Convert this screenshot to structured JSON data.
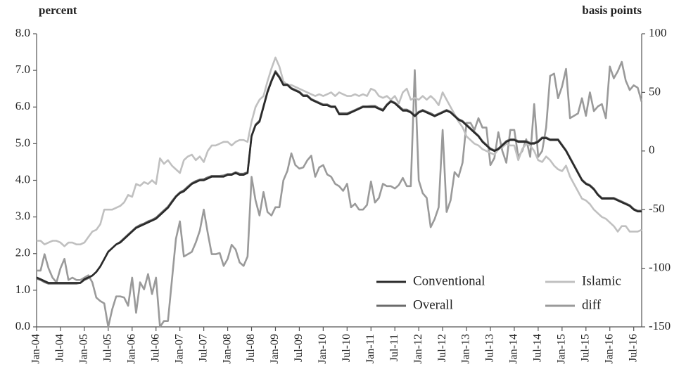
{
  "chart_data": {
    "type": "line",
    "y_label": "percent",
    "y2_label": "basis points",
    "categories": [
      "Jan-04",
      null,
      null,
      null,
      null,
      null,
      "Jul-04",
      null,
      null,
      null,
      null,
      null,
      "Jan-05",
      null,
      null,
      null,
      null,
      null,
      "Jul-05",
      null,
      null,
      null,
      null,
      null,
      "Jan-06",
      null,
      null,
      null,
      null,
      null,
      "Jul-06",
      null,
      null,
      null,
      null,
      null,
      "Jan-07",
      null,
      null,
      null,
      null,
      null,
      "Jul-07",
      null,
      null,
      null,
      null,
      null,
      "Jan-08",
      null,
      null,
      null,
      null,
      null,
      "Jul-08",
      null,
      null,
      null,
      null,
      null,
      "Jan-09",
      null,
      null,
      null,
      null,
      null,
      "Jul-09",
      null,
      null,
      null,
      null,
      null,
      "Jan-10",
      null,
      null,
      null,
      null,
      null,
      "Jul-10",
      null,
      null,
      null,
      null,
      null,
      "Jan-11",
      null,
      null,
      null,
      null,
      null,
      "Jul-11",
      null,
      null,
      null,
      null,
      null,
      "Jan-12",
      null,
      null,
      null,
      null,
      null,
      "Jul-12",
      null,
      null,
      null,
      null,
      null,
      "Jan-13",
      null,
      null,
      null,
      null,
      null,
      "Jul-13",
      null,
      null,
      null,
      null,
      null,
      "Jan-14",
      null,
      null,
      null,
      null,
      null,
      "Jul-14",
      null,
      null,
      null,
      null,
      null,
      "Jan-15",
      null,
      null,
      null,
      null,
      null,
      "Jul-15",
      null,
      null,
      null,
      null,
      null,
      "Jan-16",
      null,
      null,
      null,
      null,
      null,
      "Jul-16",
      null,
      null
    ],
    "series": [
      {
        "name": "Conventional",
        "color": "#2a2a2a",
        "width": 2.6,
        "values": [
          1.35,
          1.3,
          1.25,
          1.2,
          1.2,
          1.2,
          1.2,
          1.2,
          1.2,
          1.2,
          1.2,
          1.2,
          1.3,
          1.35,
          1.4,
          1.5,
          1.65,
          1.85,
          2.05,
          2.15,
          2.25,
          2.3,
          2.4,
          2.5,
          2.6,
          2.7,
          2.75,
          2.8,
          2.85,
          2.9,
          2.95,
          3.05,
          3.15,
          3.25,
          3.4,
          3.55,
          3.65,
          3.7,
          3.8,
          3.9,
          3.95,
          4.0,
          4.0,
          4.05,
          4.1,
          4.1,
          4.1,
          4.1,
          4.15,
          4.15,
          4.2,
          4.15,
          4.15,
          4.2,
          5.2,
          5.5,
          5.6,
          6.0,
          6.4,
          6.7,
          6.95,
          6.8,
          6.6,
          6.6,
          6.5,
          6.45,
          6.4,
          6.3,
          6.3,
          6.2,
          6.15,
          6.1,
          6.05,
          6.05,
          6.0,
          6.0,
          5.8,
          5.8,
          5.8,
          5.85,
          5.9,
          5.95,
          6.0,
          6.0,
          6.0,
          6.0,
          5.95,
          5.9,
          6.05,
          6.15,
          6.1,
          6.0,
          5.9,
          5.9,
          5.85,
          5.75,
          5.85,
          5.9,
          5.85,
          5.8,
          5.75,
          5.8,
          5.85,
          5.9,
          5.85,
          5.75,
          5.65,
          5.6,
          5.5,
          5.4,
          5.3,
          5.2,
          5.05,
          4.95,
          4.85,
          4.8,
          4.85,
          4.95,
          5.05,
          5.1,
          5.1,
          5.05,
          5.05,
          5.05,
          5.0,
          5.0,
          5.05,
          5.15,
          5.15,
          5.1,
          5.1,
          5.1,
          4.95,
          4.8,
          4.6,
          4.4,
          4.2,
          4.0,
          3.9,
          3.85,
          3.75,
          3.6,
          3.5,
          3.5,
          3.5,
          3.5,
          3.45,
          3.4,
          3.35,
          3.3,
          3.2,
          3.15,
          3.15
        ]
      },
      {
        "name": "Islamic",
        "color": "#c0c0c0",
        "width": 2.6,
        "values": [
          2.35,
          2.35,
          2.25,
          2.3,
          2.35,
          2.35,
          2.3,
          2.2,
          2.3,
          2.3,
          2.25,
          2.25,
          2.3,
          2.45,
          2.6,
          2.65,
          2.8,
          3.2,
          3.2,
          3.2,
          3.25,
          3.3,
          3.4,
          3.6,
          3.55,
          3.9,
          3.85,
          3.95,
          3.9,
          4.0,
          3.9,
          4.6,
          4.45,
          4.55,
          4.4,
          4.3,
          4.2,
          4.55,
          4.65,
          4.7,
          4.55,
          4.65,
          4.5,
          4.8,
          4.95,
          4.95,
          5.0,
          5.05,
          5.05,
          4.95,
          5.05,
          5.1,
          5.1,
          5.05,
          5.6,
          6.0,
          6.2,
          6.3,
          6.7,
          7.05,
          7.35,
          7.1,
          6.7,
          6.6,
          6.6,
          6.55,
          6.5,
          6.45,
          6.4,
          6.35,
          6.3,
          6.35,
          6.3,
          6.35,
          6.4,
          6.3,
          6.4,
          6.35,
          6.3,
          6.3,
          6.35,
          6.3,
          6.35,
          6.3,
          6.5,
          6.45,
          6.3,
          6.25,
          6.3,
          6.2,
          6.3,
          6.1,
          6.4,
          6.5,
          6.2,
          6.25,
          6.2,
          6.3,
          6.2,
          6.3,
          6.2,
          6.05,
          6.4,
          6.2,
          6.0,
          5.8,
          5.6,
          5.45,
          5.2,
          5.1,
          5.0,
          4.95,
          4.85,
          4.8,
          4.75,
          4.7,
          4.85,
          4.9,
          5.0,
          4.95,
          4.95,
          4.55,
          4.85,
          5.0,
          4.95,
          4.8,
          4.55,
          4.5,
          4.65,
          4.55,
          4.4,
          4.3,
          4.25,
          4.4,
          4.1,
          3.9,
          3.7,
          3.5,
          3.45,
          3.35,
          3.2,
          3.1,
          3.0,
          2.95,
          2.85,
          2.75,
          2.6,
          2.75,
          2.75,
          2.6,
          2.6,
          2.6,
          2.65
        ]
      },
      {
        "name": "Overall",
        "color": "#6b6b6b",
        "width": 2.6,
        "values": [
          1.32,
          1.28,
          1.22,
          1.18,
          1.18,
          1.18,
          1.18,
          1.18,
          1.18,
          1.18,
          1.18,
          1.2,
          1.28,
          1.33,
          1.4,
          1.5,
          1.65,
          1.85,
          2.05,
          2.15,
          2.25,
          2.32,
          2.42,
          2.52,
          2.62,
          2.72,
          2.78,
          2.82,
          2.88,
          2.92,
          2.98,
          3.08,
          3.18,
          3.28,
          3.43,
          3.57,
          3.67,
          3.73,
          3.83,
          3.92,
          3.98,
          4.02,
          4.03,
          4.08,
          4.12,
          4.12,
          4.12,
          4.13,
          4.17,
          4.17,
          4.22,
          4.18,
          4.18,
          4.22,
          5.22,
          5.52,
          5.63,
          6.03,
          6.43,
          6.73,
          6.98,
          6.83,
          6.62,
          6.62,
          6.52,
          6.47,
          6.42,
          6.32,
          6.32,
          6.22,
          6.17,
          6.12,
          6.07,
          6.07,
          6.02,
          6.02,
          5.83,
          5.83,
          5.83,
          5.87,
          5.92,
          5.97,
          6.02,
          6.02,
          6.03,
          6.03,
          5.97,
          5.93,
          6.07,
          6.17,
          6.12,
          6.03,
          5.93,
          5.93,
          5.87,
          5.78,
          5.87,
          5.92,
          5.87,
          5.83,
          5.77,
          5.82,
          5.87,
          5.92,
          5.87,
          5.77,
          5.67,
          5.62,
          5.52,
          5.42,
          5.32,
          5.22,
          5.07,
          4.97,
          4.87,
          4.82,
          4.87,
          4.97,
          5.07,
          5.12,
          5.12,
          5.07,
          5.07,
          5.07,
          5.02,
          5.02,
          5.07,
          5.17,
          5.17,
          5.12,
          5.12,
          5.12,
          4.97,
          4.82,
          4.62,
          4.42,
          4.22,
          4.02,
          3.92,
          3.87,
          3.77,
          3.62,
          3.52,
          3.52,
          3.52,
          3.52,
          3.47,
          3.42,
          3.37,
          3.32,
          3.22,
          3.17,
          3.17
        ]
      },
      {
        "name": "diff",
        "color": "#9a9a9a",
        "width": 2.6,
        "axis": "y2",
        "values": [
          -102,
          -102,
          -88,
          -100,
          -108,
          -112,
          -100,
          -92,
          -110,
          -108,
          -110,
          -110,
          -108,
          -106,
          -112,
          -125,
          -128,
          -130,
          -150,
          -135,
          -124,
          -124,
          -125,
          -132,
          -108,
          -138,
          -112,
          -118,
          -105,
          -122,
          -108,
          -150,
          -145,
          -145,
          -110,
          -75,
          -60,
          -90,
          -88,
          -86,
          -78,
          -68,
          -50,
          -70,
          -88,
          -88,
          -87,
          -98,
          -92,
          -80,
          -84,
          -95,
          -98,
          -90,
          -22,
          -42,
          -55,
          -35,
          -52,
          -55,
          -48,
          -48,
          -25,
          -17,
          -2,
          -12,
          -15,
          -14,
          -8,
          -4,
          -22,
          -14,
          -12,
          -20,
          -22,
          -28,
          -30,
          -34,
          -28,
          -48,
          -45,
          -50,
          -50,
          -46,
          -26,
          -44,
          -40,
          -28,
          -30,
          -30,
          -32,
          -29,
          -23,
          -30,
          -30,
          69,
          -25,
          -36,
          -40,
          -65,
          -58,
          -48,
          18,
          -52,
          -42,
          -18,
          -22,
          -10,
          24,
          24,
          18,
          28,
          20,
          20,
          -12,
          -6,
          16,
          0,
          -10,
          18,
          18,
          -5,
          0,
          10,
          -5,
          40,
          -5,
          0,
          20,
          64,
          66,
          45,
          55,
          70,
          28,
          30,
          32,
          45,
          30,
          50,
          34,
          38,
          40,
          28,
          72,
          62,
          68,
          76,
          60,
          52,
          56,
          54,
          42
        ]
      }
    ],
    "ylim": [
      0,
      8
    ],
    "yticks": [
      {
        "value": 0,
        "label": "0.0"
      },
      {
        "value": 1,
        "label": "1.0"
      },
      {
        "value": 2,
        "label": "2.0"
      },
      {
        "value": 3,
        "label": "3.0"
      },
      {
        "value": 4,
        "label": "4.0"
      },
      {
        "value": 5,
        "label": "5.0"
      },
      {
        "value": 6,
        "label": "6.0"
      },
      {
        "value": 7,
        "label": "7.0"
      },
      {
        "value": 8,
        "label": "8.0"
      }
    ],
    "y2lim": [
      -150,
      100
    ],
    "y2ticks": [
      -150,
      -100,
      -50,
      0,
      50,
      100
    ],
    "grid": false,
    "legend": "lower right"
  }
}
